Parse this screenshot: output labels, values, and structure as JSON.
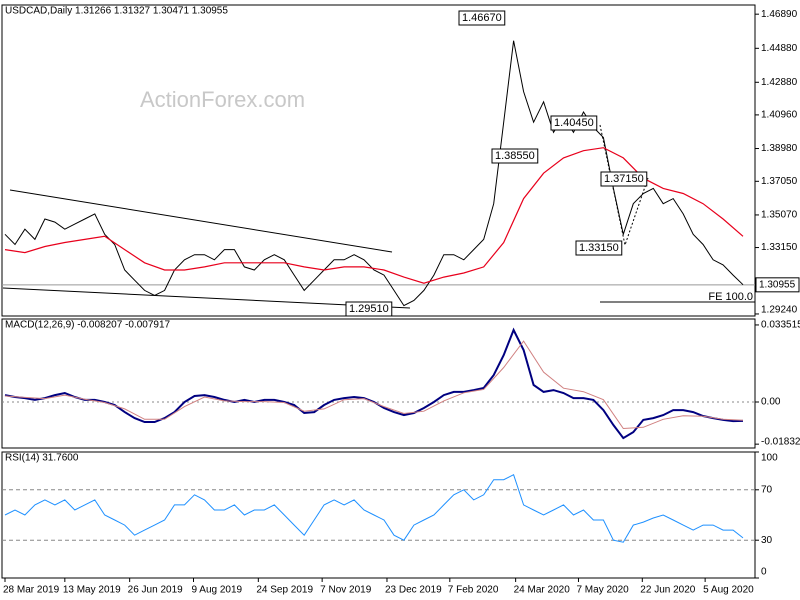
{
  "chart_data": [
    {
      "type": "line",
      "title": "USDCAD,Daily  1.31266 1.31327 1.30471 1.30955",
      "watermark": "ActionForex.com",
      "xlim": [
        -0.3,
        75.2
      ],
      "ylim": [
        1.2912,
        1.4743
      ],
      "yticks": [
        {
          "value": 1.4689,
          "label": "1.46890"
        },
        {
          "value": 1.4488,
          "label": "1.44880"
        },
        {
          "value": 1.4288,
          "label": "1.42880"
        },
        {
          "value": 1.4096,
          "label": "1.40960"
        },
        {
          "value": 1.3898,
          "label": "1.38980"
        },
        {
          "value": 1.3705,
          "label": "1.37050"
        },
        {
          "value": 1.3507,
          "label": "1.35070"
        },
        {
          "value": 1.3315,
          "label": "1.33150"
        },
        {
          "value": 1.2924,
          "label": "1.29240"
        }
      ],
      "grid": false,
      "last_price": 1.30955,
      "annotations": [
        "1.46670",
        "1.38550",
        "1.40450",
        "1.37150",
        "1.33150",
        "1.29510",
        "FE 100.0"
      ],
      "x": [
        0,
        1,
        2,
        3,
        4,
        5,
        6,
        7,
        8,
        9,
        10,
        11,
        12,
        13,
        14,
        15,
        16,
        17,
        18,
        19,
        20,
        21,
        22,
        23,
        24,
        25,
        26,
        27,
        28,
        29,
        30,
        31,
        32,
        33,
        34,
        35,
        36,
        37,
        38,
        39,
        40,
        41,
        42,
        43,
        44,
        45,
        46,
        47,
        48,
        49,
        50,
        51,
        52,
        53,
        54,
        55,
        56,
        57,
        58,
        59,
        60,
        61,
        62,
        63,
        64,
        65,
        66,
        67,
        68,
        69,
        70,
        71,
        72,
        73,
        74
      ],
      "series": [
        {
          "color": "#000000",
          "width": 1,
          "values": [
            1.3393,
            1.3333,
            1.3423,
            1.3363,
            1.3483,
            1.3465,
            1.3423,
            1.3453,
            1.3483,
            1.3513,
            1.3393,
            1.3333,
            1.3183,
            1.3123,
            1.3063,
            1.3033,
            1.3063,
            1.3183,
            1.3243,
            1.3273,
            1.3273,
            1.3243,
            1.3303,
            1.3303,
            1.3201,
            1.3183,
            1.3243,
            1.3273,
            1.3243,
            1.3153,
            1.3063,
            1.3123,
            1.3183,
            1.3243,
            1.3243,
            1.3273,
            1.3243,
            1.3183,
            1.3153,
            1.3063,
            1.2973,
            1.3003,
            1.3063,
            1.3153,
            1.3273,
            1.3273,
            1.3243,
            1.3303,
            1.3363,
            1.3573,
            1.4053,
            1.4533,
            1.4233,
            1.4053,
            1.4173,
            1.3993,
            1.4083,
            1.3993,
            1.4113,
            1.4023,
            1.3963,
            1.3663,
            1.3393,
            1.3573,
            1.3633,
            1.3663,
            1.3573,
            1.3603,
            1.3513,
            1.3393,
            1.3333,
            1.3243,
            1.3213,
            1.3153,
            1.3096
          ]
        },
        {
          "color": "#e8001c",
          "width": 1.2,
          "x": [
            0,
            2,
            4,
            6,
            8,
            10,
            12,
            14,
            16,
            18,
            20,
            22,
            24,
            26,
            28,
            30,
            32,
            34,
            36,
            38,
            40,
            42,
            44,
            46,
            48,
            50,
            52,
            54,
            56,
            58,
            60,
            62,
            64,
            66,
            68,
            70,
            72,
            74
          ],
          "values": [
            1.3303,
            1.3285,
            1.3321,
            1.3345,
            1.3363,
            1.3381,
            1.3303,
            1.3225,
            1.3183,
            1.3183,
            1.3201,
            1.3225,
            1.3225,
            1.3225,
            1.3225,
            1.3201,
            1.3183,
            1.3201,
            1.3201,
            1.3183,
            1.3141,
            1.3105,
            1.3141,
            1.3165,
            1.3201,
            1.3345,
            1.3603,
            1.3753,
            1.3843,
            1.3885,
            1.3903,
            1.3843,
            1.3723,
            1.3663,
            1.3633,
            1.3573,
            1.3483,
            1.3381
          ]
        }
      ]
    },
    {
      "type": "line",
      "title": "MACD(12,26,9) -0.008207 -0.007917",
      "xlim": [
        -0.3,
        75.2
      ],
      "ylim": [
        -0.02,
        0.0361
      ],
      "yticks": [
        0.033515,
        {
          "value": 0,
          "label": "0.00"
        },
        -0.018324
      ],
      "grid": false,
      "x": [
        0,
        1,
        2,
        3,
        4,
        5,
        6,
        7,
        8,
        9,
        10,
        11,
        12,
        13,
        14,
        15,
        16,
        17,
        18,
        19,
        20,
        21,
        22,
        23,
        24,
        25,
        26,
        27,
        28,
        29,
        30,
        31,
        32,
        33,
        34,
        35,
        36,
        37,
        38,
        39,
        40,
        41,
        42,
        43,
        44,
        45,
        46,
        47,
        48,
        49,
        50,
        51,
        52,
        53,
        54,
        55,
        56,
        57,
        58,
        59,
        60,
        61,
        62,
        63,
        64,
        65,
        66,
        67,
        68,
        69,
        70,
        71,
        72,
        73,
        74
      ],
      "series": [
        {
          "color": "#000080",
          "width": 2,
          "values": [
            0.003,
            0.0022,
            0.0017,
            0.0009,
            0.0017,
            0.003,
            0.0039,
            0.0022,
            0.0009,
            0.0009,
            0,
            -0.0013,
            -0.0044,
            -0.007,
            -0.0087,
            -0.0087,
            -0.007,
            -0.0044,
            0,
            0.0026,
            0.003,
            0.0022,
            0.0009,
            0,
            0.0009,
            0,
            0.0009,
            0.0009,
            0,
            -0.0013,
            -0.0048,
            -0.0044,
            -0.0013,
            0.0009,
            0.0017,
            0.0022,
            0.0017,
            0,
            -0.0026,
            -0.0044,
            -0.0057,
            -0.0048,
            -0.0026,
            0,
            0.003,
            0.0044,
            0.0044,
            0.0052,
            0.0061,
            0.0117,
            0.0204,
            0.0313,
            0.0226,
            0.0074,
            0.0044,
            0.0052,
            0.0039,
            0.0017,
            0.0017,
            0.0009,
            -0.0035,
            -0.01,
            -0.0157,
            -0.0131,
            -0.0078,
            -0.007,
            -0.0057,
            -0.0035,
            -0.0035,
            -0.0044,
            -0.0061,
            -0.007,
            -0.0078,
            -0.0083,
            -0.0082
          ]
        },
        {
          "color": "#d08080",
          "width": 1,
          "x": [
            0,
            2,
            4,
            6,
            8,
            10,
            12,
            14,
            16,
            18,
            20,
            22,
            24,
            26,
            28,
            30,
            32,
            34,
            36,
            38,
            40,
            42,
            44,
            46,
            48,
            50,
            52,
            54,
            56,
            58,
            60,
            62,
            64,
            66,
            68,
            70,
            72,
            74
          ],
          "values": [
            0.0026,
            0.002,
            0.0015,
            0.003,
            0.0012,
            -0.0002,
            -0.003,
            -0.0075,
            -0.0075,
            -0.002,
            0.0022,
            0.0005,
            0.0002,
            0.0002,
            -0.0002,
            -0.004,
            -0.003,
            0.001,
            0.0015,
            -0.002,
            -0.005,
            -0.004,
            0.0005,
            0.004,
            0.0055,
            0.015,
            0.0265,
            0.013,
            0.006,
            0.0045,
            0.001,
            -0.0115,
            -0.011,
            -0.0075,
            -0.006,
            -0.0062,
            -0.0075,
            -0.0079
          ]
        }
      ]
    },
    {
      "type": "line",
      "title": "RSI(14) 31.7600",
      "xlim": [
        -0.3,
        75.2
      ],
      "ylim": [
        0,
        100
      ],
      "yticks": [
        100,
        70,
        30,
        0
      ],
      "grid": true,
      "xticks": [
        {
          "value": 0,
          "label": "28 Mar 2019"
        },
        {
          "value": 6,
          "label": "13 May 2019"
        },
        {
          "value": 12.5,
          "label": "26 Jun 2019"
        },
        {
          "value": 18.9,
          "label": "9 Aug 2019"
        },
        {
          "value": 25.4,
          "label": "24 Sep 2019"
        },
        {
          "value": 31.8,
          "label": "7 Nov 2019"
        },
        {
          "value": 38.3,
          "label": "23 Dec 2019"
        },
        {
          "value": 44.6,
          "label": "7 Feb 2020"
        },
        {
          "value": 51.2,
          "label": "24 Mar 2020"
        },
        {
          "value": 57.5,
          "label": "7 May 2020"
        },
        {
          "value": 63.9,
          "label": "22 Jun 2020"
        },
        {
          "value": 70.2,
          "label": "5 Aug 2020"
        }
      ],
      "x": [
        0,
        1,
        2,
        3,
        4,
        5,
        6,
        7,
        8,
        9,
        10,
        11,
        12,
        13,
        14,
        15,
        16,
        17,
        18,
        19,
        20,
        21,
        22,
        23,
        24,
        25,
        26,
        27,
        28,
        29,
        30,
        31,
        32,
        33,
        34,
        35,
        36,
        37,
        38,
        39,
        40,
        41,
        42,
        43,
        44,
        45,
        46,
        47,
        48,
        49,
        50,
        51,
        52,
        53,
        54,
        55,
        56,
        57,
        58,
        59,
        60,
        61,
        62,
        63,
        64,
        65,
        66,
        67,
        68,
        69,
        70,
        71,
        72,
        73,
        74
      ],
      "series": [
        {
          "color": "#1e90ff",
          "width": 1,
          "values": [
            50,
            54,
            50,
            58,
            62,
            58,
            62,
            54,
            58,
            62,
            50,
            46,
            42,
            34,
            38,
            42,
            46,
            58,
            58,
            66,
            62,
            54,
            54,
            58,
            50,
            54,
            54,
            58,
            50,
            42,
            34,
            46,
            58,
            62,
            58,
            62,
            54,
            50,
            46,
            34,
            30,
            42,
            46,
            50,
            58,
            66,
            70,
            62,
            66,
            78,
            78,
            82,
            58,
            54,
            50,
            54,
            58,
            50,
            54,
            46,
            46,
            30,
            28.4,
            42,
            44.4,
            47.6,
            50,
            46,
            42,
            38,
            42,
            42,
            38,
            38,
            31.8
          ]
        }
      ]
    }
  ]
}
